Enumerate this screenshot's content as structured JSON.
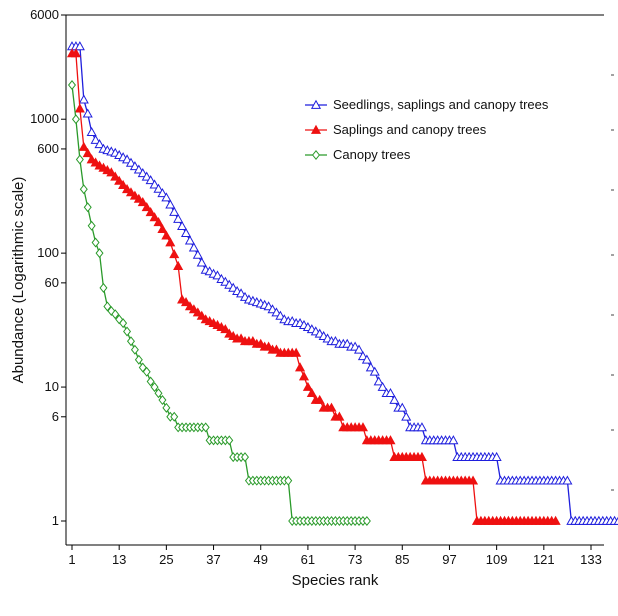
{
  "chart_data": {
    "type": "line",
    "title": "",
    "xlabel": "Species rank",
    "ylabel": "Abundance (Logarithmic scale)",
    "y_scale": "log",
    "xlim": [
      0,
      143
    ],
    "ylim": [
      0.7,
      6000
    ],
    "x_ticks": [
      1,
      13,
      25,
      37,
      49,
      61,
      73,
      85,
      97,
      109,
      121,
      133
    ],
    "y_ticks": [
      1,
      6,
      10,
      60,
      100,
      600,
      1000,
      6000
    ],
    "grid": false,
    "legend_position": "top-right",
    "series": [
      {
        "name": "Seedlings, saplings and canopy trees",
        "color": "#1f1fdd",
        "marker": "triangle-open",
        "knots": [
          [
            1,
            3500
          ],
          [
            2,
            3500
          ],
          [
            3,
            3500
          ],
          [
            4,
            1400
          ],
          [
            5,
            1100
          ],
          [
            6,
            800
          ],
          [
            7,
            700
          ],
          [
            8,
            650
          ],
          [
            9,
            600
          ],
          [
            12,
            560
          ],
          [
            15,
            500
          ],
          [
            18,
            420
          ],
          [
            21,
            350
          ],
          [
            25,
            260
          ],
          [
            28,
            180
          ],
          [
            32,
            110
          ],
          [
            35,
            75
          ],
          [
            38,
            68
          ],
          [
            42,
            55
          ],
          [
            46,
            45
          ],
          [
            51,
            40
          ],
          [
            55,
            32
          ],
          [
            59,
            30
          ],
          [
            63,
            26
          ],
          [
            67,
            22
          ],
          [
            71,
            21
          ],
          [
            74,
            19
          ],
          [
            77,
            14
          ],
          [
            80,
            10
          ],
          [
            83,
            8
          ],
          [
            86,
            6
          ],
          [
            88,
            5
          ],
          [
            94,
            4
          ],
          [
            104,
            3
          ],
          [
            109,
            3
          ],
          [
            111,
            2
          ],
          [
            127,
            2
          ],
          [
            128,
            1
          ],
          [
            141,
            1
          ]
        ],
        "fill_points": true
      },
      {
        "name": "Saplings and canopy trees",
        "color": "#ee1111",
        "marker": "triangle-filled",
        "knots": [
          [
            1,
            3100
          ],
          [
            2,
            3100
          ],
          [
            3,
            1200
          ],
          [
            4,
            620
          ],
          [
            6,
            500
          ],
          [
            8,
            450
          ],
          [
            11,
            400
          ],
          [
            15,
            300
          ],
          [
            19,
            240
          ],
          [
            23,
            170
          ],
          [
            26,
            120
          ],
          [
            28,
            80
          ],
          [
            29,
            45
          ],
          [
            32,
            38
          ],
          [
            35,
            32
          ],
          [
            39,
            28
          ],
          [
            42,
            24
          ],
          [
            46,
            22
          ],
          [
            51,
            20
          ],
          [
            55,
            18
          ],
          [
            58,
            18
          ],
          [
            59,
            14
          ],
          [
            61,
            10
          ],
          [
            63,
            8
          ],
          [
            66,
            7
          ],
          [
            69,
            6
          ],
          [
            71,
            5
          ],
          [
            75,
            5
          ],
          [
            77,
            4
          ],
          [
            82,
            4
          ],
          [
            84,
            3
          ],
          [
            90,
            3
          ],
          [
            91,
            2
          ],
          [
            103,
            2
          ],
          [
            104,
            1
          ],
          [
            124,
            1
          ]
        ],
        "fill_points": true
      },
      {
        "name": "Canopy trees",
        "color": "#2a9a2a",
        "marker": "diamond-open",
        "knots": [
          [
            1,
            1800
          ],
          [
            2,
            1000
          ],
          [
            3,
            500
          ],
          [
            4,
            300
          ],
          [
            5,
            220
          ],
          [
            6,
            160
          ],
          [
            7,
            120
          ],
          [
            8,
            100
          ],
          [
            9,
            55
          ],
          [
            10,
            40
          ],
          [
            12,
            35
          ],
          [
            14,
            30
          ],
          [
            16,
            22
          ],
          [
            18,
            16
          ],
          [
            20,
            13
          ],
          [
            22,
            10
          ],
          [
            24,
            8
          ],
          [
            25,
            7
          ],
          [
            27,
            6
          ],
          [
            29,
            5
          ],
          [
            35,
            5
          ],
          [
            36,
            4
          ],
          [
            41,
            4
          ],
          [
            42,
            3
          ],
          [
            45,
            3
          ],
          [
            46,
            2
          ],
          [
            56,
            2
          ],
          [
            57,
            1
          ],
          [
            76,
            1
          ]
        ],
        "fill_points": true
      }
    ]
  }
}
